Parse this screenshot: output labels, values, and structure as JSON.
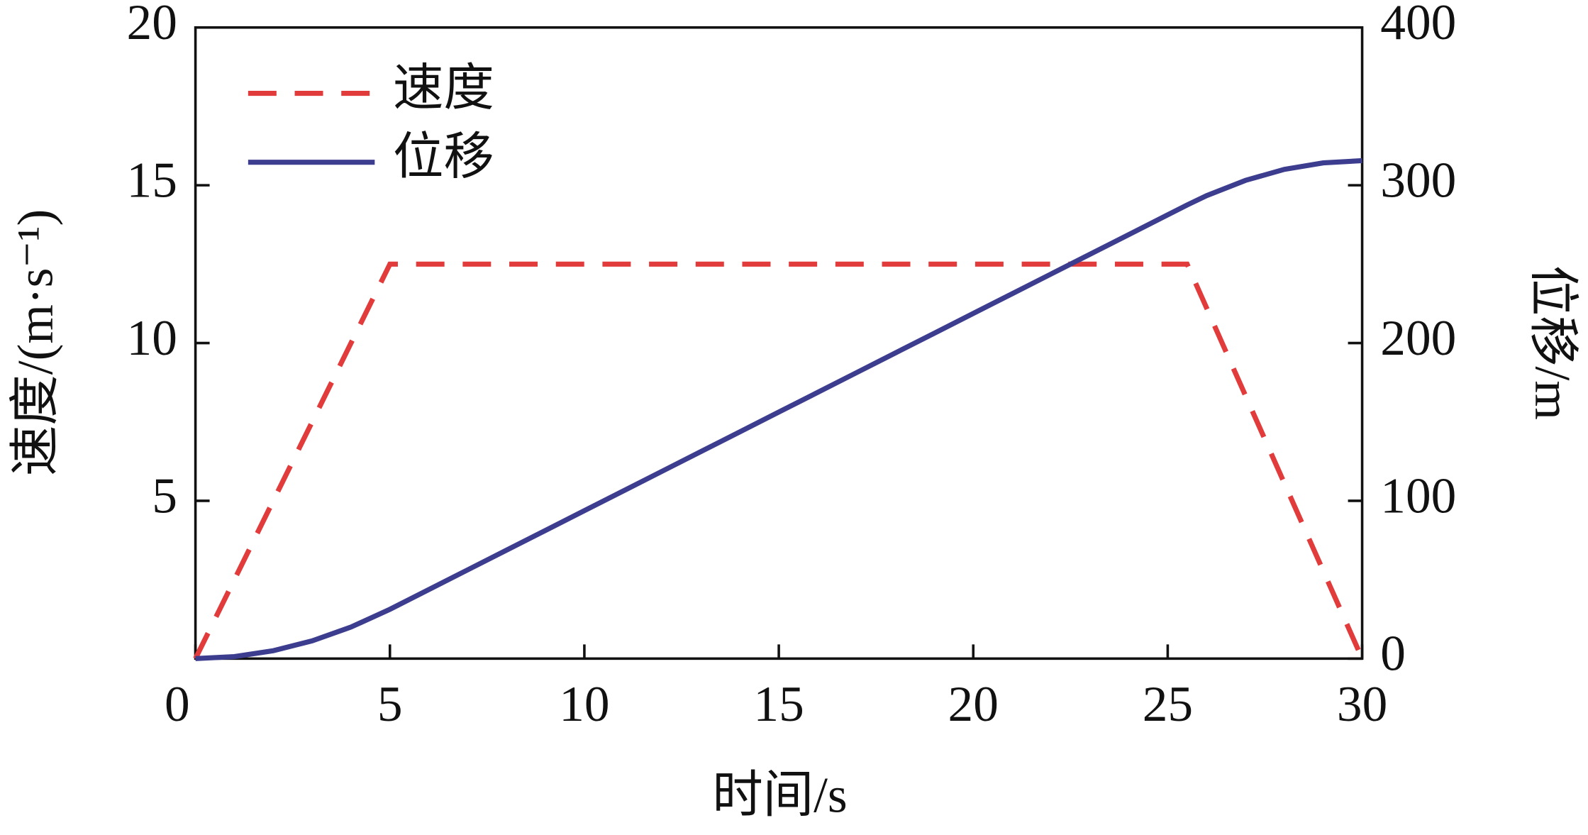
{
  "chart_data": {
    "type": "line",
    "xlabel": "时间/s",
    "ylabel": "速度/(m·s⁻¹)",
    "y2label": "位移/m",
    "xlim": [
      0,
      30
    ],
    "xticks": [
      0,
      5,
      10,
      15,
      20,
      25,
      30
    ],
    "ylim": [
      0,
      20
    ],
    "yticks": [
      5,
      10,
      15,
      20
    ],
    "y2lim": [
      0,
      400
    ],
    "y2ticks": [
      0,
      100,
      200,
      300,
      400
    ],
    "legend": "upper left",
    "series": [
      {
        "name": "速度",
        "color": "#e23b3b",
        "dash": true,
        "x": [
          0,
          5,
          25.5,
          30
        ],
        "values": [
          0,
          12.5,
          12.5,
          0
        ]
      },
      {
        "name": "位移",
        "color": "#3d3d8f",
        "axis": "y2",
        "x": [
          0,
          1,
          2,
          3,
          4,
          5,
          6,
          7,
          8,
          9,
          10,
          11,
          12,
          13,
          14,
          15,
          16,
          17,
          18,
          19,
          20,
          21,
          22,
          23,
          24,
          25,
          25.5,
          26,
          27,
          28,
          29,
          30
        ],
        "values": [
          0,
          1.25,
          5,
          11.25,
          20,
          31.25,
          43.75,
          56.25,
          68.75,
          81.25,
          93.75,
          106.25,
          118.75,
          131.25,
          143.75,
          156.25,
          168.75,
          181.25,
          193.75,
          206.25,
          218.75,
          231.25,
          243.75,
          256.25,
          268.75,
          281.25,
          287.5,
          293.4,
          303.1,
          310.1,
          314.2,
          315.6
        ]
      }
    ]
  }
}
